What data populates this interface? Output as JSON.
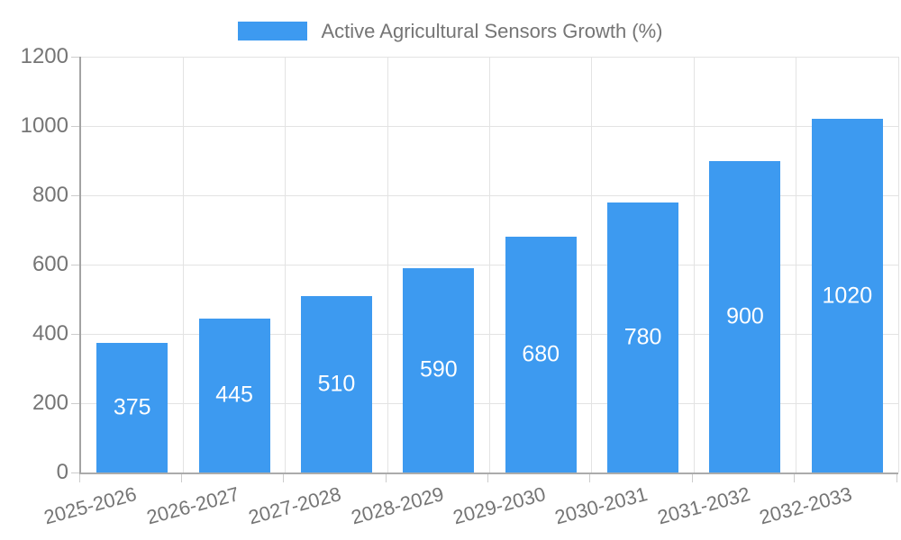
{
  "chart_data": {
    "type": "bar",
    "title": "Active Agricultural Sensors Growth (%)",
    "legend": [
      "Active Agricultural Sensors Growth (%)"
    ],
    "legend_position": "top-center",
    "categories": [
      "2025-2026",
      "2026-2027",
      "2027-2028",
      "2028-2029",
      "2029-2030",
      "2030-2031",
      "2031-2032",
      "2032-2033"
    ],
    "values": [
      375,
      445,
      510,
      590,
      680,
      780,
      900,
      1020
    ],
    "xlabel": "",
    "ylabel": "",
    "ylim": [
      0,
      1200
    ],
    "yticks": [
      0,
      200,
      400,
      600,
      800,
      1000,
      1200
    ],
    "grid": true,
    "colors": {
      "bar": "#3D9AF0",
      "bar_value_text": "#ffffff",
      "axis_text": "#757575",
      "grid_line": "#e3e3e3",
      "axis_line": "#a6a6a6",
      "tick": "#cccccc",
      "background": "#ffffff"
    }
  }
}
